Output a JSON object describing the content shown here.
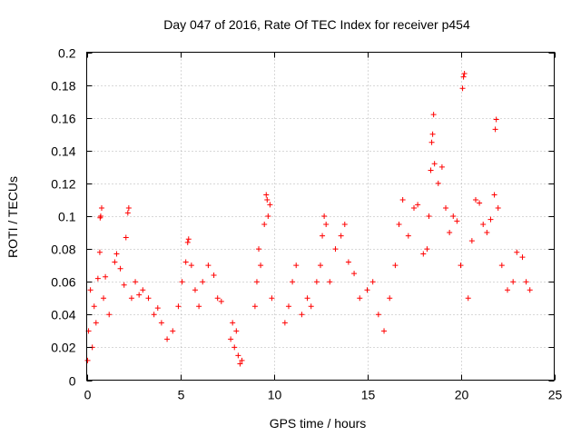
{
  "chart_data": {
    "type": "scatter",
    "title": "Day 047 of 2016, Rate Of TEC Index for receiver p454",
    "xlabel": "GPS time / hours",
    "ylabel": "ROTI / TECUs",
    "xlim": [
      0,
      25
    ],
    "ylim": [
      0,
      0.2
    ],
    "x_ticks": [
      "0",
      "5",
      "10",
      "15",
      "20",
      "25"
    ],
    "y_ticks": [
      "0",
      "0.02",
      "0.04",
      "0.06",
      "0.08",
      "0.1",
      "0.12",
      "0.14",
      "0.16",
      "0.18",
      "0.2"
    ],
    "grid": true,
    "marker": "plus",
    "series_color": "#ff0000",
    "series": [
      {
        "name": "ROTI",
        "points": [
          [
            0.05,
            0.012
          ],
          [
            0.1,
            0.03
          ],
          [
            0.2,
            0.055
          ],
          [
            0.3,
            0.02
          ],
          [
            0.4,
            0.045
          ],
          [
            0.5,
            0.035
          ],
          [
            0.6,
            0.062
          ],
          [
            0.7,
            0.078
          ],
          [
            0.72,
            0.099
          ],
          [
            0.75,
            0.1
          ],
          [
            0.8,
            0.105
          ],
          [
            0.9,
            0.05
          ],
          [
            1.0,
            0.063
          ],
          [
            1.2,
            0.04
          ],
          [
            1.5,
            0.072
          ],
          [
            1.6,
            0.077
          ],
          [
            1.8,
            0.068
          ],
          [
            2.0,
            0.058
          ],
          [
            2.1,
            0.087
          ],
          [
            2.2,
            0.102
          ],
          [
            2.25,
            0.105
          ],
          [
            2.4,
            0.05
          ],
          [
            2.6,
            0.06
          ],
          [
            2.8,
            0.052
          ],
          [
            3.0,
            0.055
          ],
          [
            3.3,
            0.05
          ],
          [
            3.6,
            0.04
          ],
          [
            3.8,
            0.044
          ],
          [
            4.0,
            0.035
          ],
          [
            4.3,
            0.025
          ],
          [
            4.6,
            0.03
          ],
          [
            4.9,
            0.045
          ],
          [
            5.1,
            0.06
          ],
          [
            5.3,
            0.072
          ],
          [
            5.4,
            0.084
          ],
          [
            5.45,
            0.086
          ],
          [
            5.6,
            0.07
          ],
          [
            5.8,
            0.055
          ],
          [
            6.0,
            0.045
          ],
          [
            6.2,
            0.06
          ],
          [
            6.5,
            0.07
          ],
          [
            6.8,
            0.064
          ],
          [
            7.0,
            0.05
          ],
          [
            7.2,
            0.048
          ],
          [
            7.7,
            0.025
          ],
          [
            7.8,
            0.035
          ],
          [
            7.9,
            0.02
          ],
          [
            8.0,
            0.03
          ],
          [
            8.1,
            0.015
          ],
          [
            8.2,
            0.01
          ],
          [
            8.3,
            0.012
          ],
          [
            9.0,
            0.045
          ],
          [
            9.1,
            0.06
          ],
          [
            9.2,
            0.08
          ],
          [
            9.3,
            0.07
          ],
          [
            9.5,
            0.095
          ],
          [
            9.6,
            0.113
          ],
          [
            9.65,
            0.11
          ],
          [
            9.7,
            0.1
          ],
          [
            9.8,
            0.107
          ],
          [
            9.9,
            0.05
          ],
          [
            10.6,
            0.035
          ],
          [
            10.8,
            0.045
          ],
          [
            11.0,
            0.06
          ],
          [
            11.2,
            0.07
          ],
          [
            11.5,
            0.04
          ],
          [
            11.8,
            0.05
          ],
          [
            12.0,
            0.045
          ],
          [
            12.3,
            0.06
          ],
          [
            12.5,
            0.07
          ],
          [
            12.6,
            0.088
          ],
          [
            12.7,
            0.1
          ],
          [
            12.8,
            0.095
          ],
          [
            13.0,
            0.06
          ],
          [
            13.3,
            0.08
          ],
          [
            13.6,
            0.088
          ],
          [
            13.8,
            0.095
          ],
          [
            14.0,
            0.072
          ],
          [
            14.3,
            0.065
          ],
          [
            14.6,
            0.05
          ],
          [
            15.0,
            0.055
          ],
          [
            15.3,
            0.06
          ],
          [
            15.6,
            0.04
          ],
          [
            15.9,
            0.03
          ],
          [
            16.2,
            0.05
          ],
          [
            16.5,
            0.07
          ],
          [
            16.7,
            0.095
          ],
          [
            16.9,
            0.11
          ],
          [
            17.2,
            0.088
          ],
          [
            17.5,
            0.105
          ],
          [
            17.7,
            0.107
          ],
          [
            18.0,
            0.077
          ],
          [
            18.2,
            0.08
          ],
          [
            18.3,
            0.1
          ],
          [
            18.4,
            0.128
          ],
          [
            18.45,
            0.145
          ],
          [
            18.5,
            0.15
          ],
          [
            18.55,
            0.162
          ],
          [
            18.6,
            0.132
          ],
          [
            18.8,
            0.12
          ],
          [
            19.0,
            0.13
          ],
          [
            19.2,
            0.105
          ],
          [
            19.4,
            0.09
          ],
          [
            19.6,
            0.1
          ],
          [
            19.8,
            0.097
          ],
          [
            20.0,
            0.07
          ],
          [
            20.1,
            0.178
          ],
          [
            20.15,
            0.185
          ],
          [
            20.2,
            0.187
          ],
          [
            20.4,
            0.05
          ],
          [
            20.6,
            0.085
          ],
          [
            20.8,
            0.11
          ],
          [
            21.0,
            0.108
          ],
          [
            21.2,
            0.095
          ],
          [
            21.4,
            0.09
          ],
          [
            21.6,
            0.098
          ],
          [
            21.8,
            0.113
          ],
          [
            21.85,
            0.153
          ],
          [
            21.9,
            0.159
          ],
          [
            22.0,
            0.105
          ],
          [
            22.2,
            0.07
          ],
          [
            22.5,
            0.055
          ],
          [
            22.8,
            0.06
          ],
          [
            23.0,
            0.078
          ],
          [
            23.3,
            0.075
          ],
          [
            23.5,
            0.06
          ],
          [
            23.7,
            0.055
          ]
        ]
      }
    ]
  }
}
